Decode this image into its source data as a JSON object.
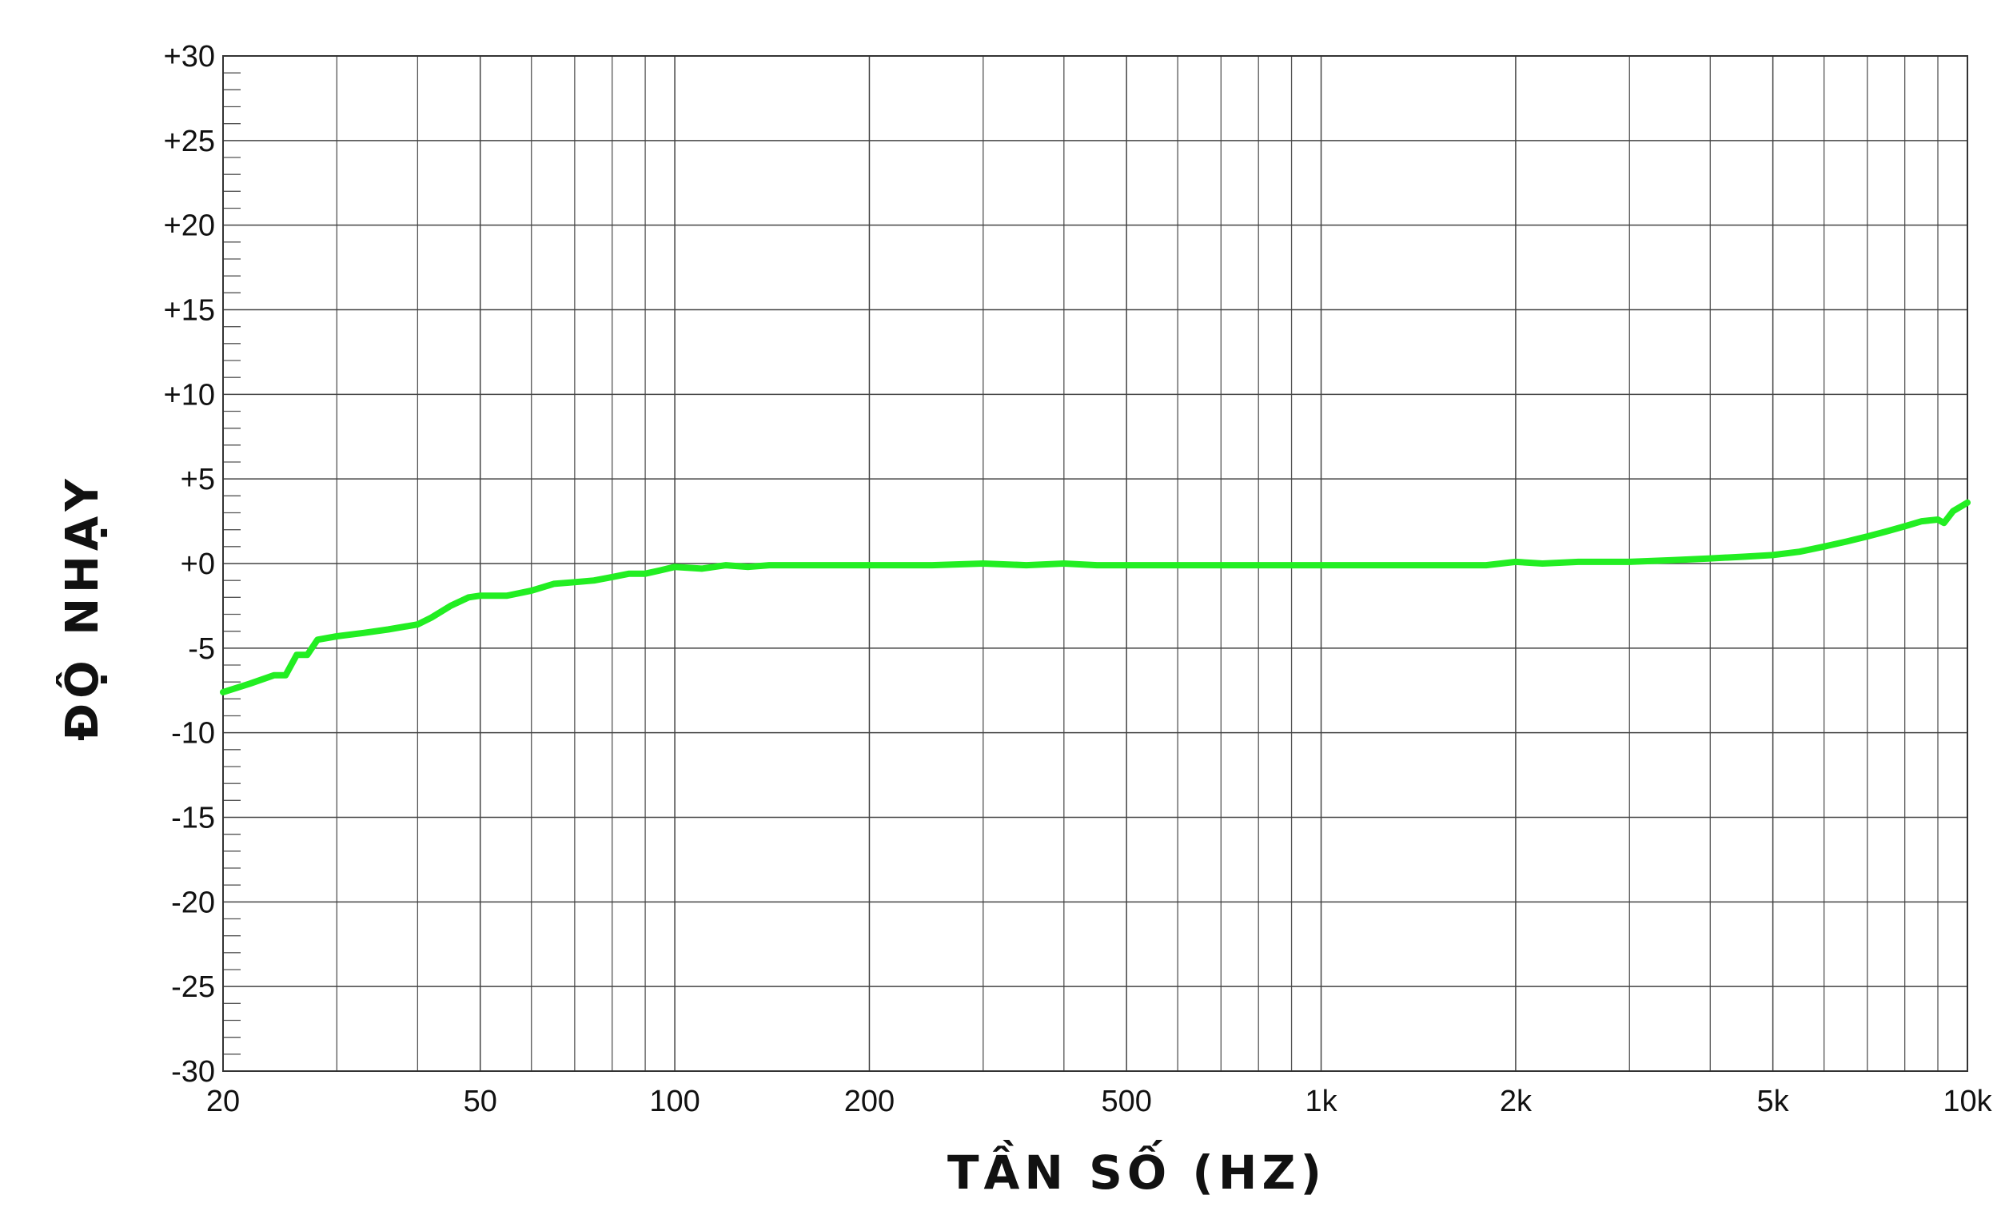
{
  "chart_data": {
    "type": "line",
    "title": "",
    "xlabel": "TẦN SỐ (HZ)",
    "ylabel": "ĐỘ NHẠY",
    "xscale": "log",
    "xlim": [
      20,
      10000
    ],
    "ylim": [
      -30,
      30
    ],
    "grid": true,
    "legend": "none",
    "x_ticks": [
      {
        "value": 20,
        "label": "20"
      },
      {
        "value": 50,
        "label": "50"
      },
      {
        "value": 100,
        "label": "100"
      },
      {
        "value": 200,
        "label": "200"
      },
      {
        "value": 500,
        "label": "500"
      },
      {
        "value": 1000,
        "label": "1k"
      },
      {
        "value": 2000,
        "label": "2k"
      },
      {
        "value": 5000,
        "label": "5k"
      },
      {
        "value": 10000,
        "label": "10k"
      }
    ],
    "x_minor_grid": [
      30,
      40,
      60,
      70,
      80,
      90,
      300,
      400,
      600,
      700,
      800,
      900,
      3000,
      4000,
      6000,
      7000,
      8000,
      9000
    ],
    "y_ticks": [
      {
        "value": 30,
        "label": "+30"
      },
      {
        "value": 25,
        "label": "+25"
      },
      {
        "value": 20,
        "label": "+20"
      },
      {
        "value": 15,
        "label": "+15"
      },
      {
        "value": 10,
        "label": "+10"
      },
      {
        "value": 5,
        "label": "+5"
      },
      {
        "value": 0,
        "label": "+0"
      },
      {
        "value": -5,
        "label": "-5"
      },
      {
        "value": -10,
        "label": "-10"
      },
      {
        "value": -15,
        "label": "-15"
      },
      {
        "value": -20,
        "label": "-20"
      },
      {
        "value": -25,
        "label": "-25"
      },
      {
        "value": -30,
        "label": "-30"
      }
    ],
    "series": [
      {
        "color": "#22ee22",
        "x": [
          20,
          22,
          24,
          25,
          26,
          27,
          28,
          30,
          33,
          36,
          40,
          42,
          45,
          48,
          50,
          55,
          60,
          65,
          70,
          75,
          80,
          85,
          90,
          95,
          100,
          110,
          120,
          130,
          140,
          150,
          170,
          200,
          250,
          300,
          350,
          400,
          450,
          500,
          550,
          600,
          700,
          800,
          900,
          1000,
          1200,
          1500,
          1800,
          2000,
          2200,
          2500,
          3000,
          3500,
          4000,
          4500,
          5000,
          5500,
          6000,
          6500,
          7000,
          7500,
          8000,
          8500,
          9000,
          9200,
          9500,
          10000
        ],
        "y": [
          -7.6,
          -7.1,
          -6.6,
          -6.6,
          -5.4,
          -5.4,
          -4.5,
          -4.3,
          -4.1,
          -3.9,
          -3.6,
          -3.2,
          -2.5,
          -2.0,
          -1.9,
          -1.9,
          -1.6,
          -1.2,
          -1.1,
          -1.0,
          -0.8,
          -0.6,
          -0.6,
          -0.4,
          -0.2,
          -0.3,
          -0.1,
          -0.2,
          -0.1,
          -0.1,
          -0.1,
          -0.1,
          -0.1,
          0.0,
          -0.1,
          0.0,
          -0.1,
          -0.1,
          -0.1,
          -0.1,
          -0.1,
          -0.1,
          -0.1,
          -0.1,
          -0.1,
          -0.1,
          -0.1,
          0.1,
          0.0,
          0.1,
          0.1,
          0.2,
          0.3,
          0.4,
          0.5,
          0.7,
          1.0,
          1.3,
          1.6,
          1.9,
          2.2,
          2.5,
          2.6,
          2.4,
          3.1,
          3.6
        ]
      }
    ]
  }
}
